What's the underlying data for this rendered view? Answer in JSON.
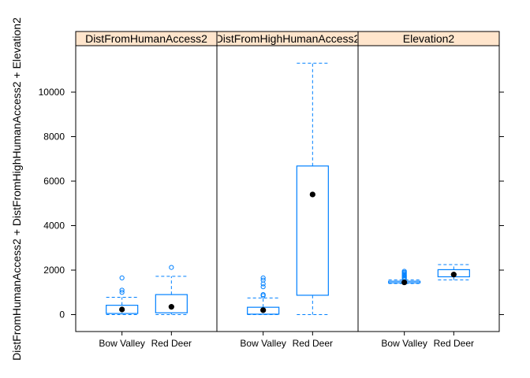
{
  "chart_data": {
    "type": "boxplot",
    "ylabel": "DistFromHumanAccess2 + DistFromHighHumanAccess2 + Elevation2",
    "ylim": [
      -700,
      11900
    ],
    "yticks": [
      0,
      2000,
      4000,
      6000,
      8000,
      10000
    ],
    "categories": [
      "Bow Valley",
      "Red Deer"
    ],
    "panels": [
      {
        "strip": "DistFromHumanAccess2",
        "boxes": [
          {
            "category": "Bow Valley",
            "whisker_low": 0,
            "q1": 50,
            "median": 230,
            "q3": 420,
            "whisker_high": 780,
            "outliers": [
              1000,
              1100,
              1650
            ]
          },
          {
            "category": "Red Deer",
            "whisker_low": 0,
            "q1": 80,
            "median": 350,
            "q3": 900,
            "whisker_high": 1720,
            "outliers": [
              2120
            ]
          }
        ]
      },
      {
        "strip": "DistFromHighHumanAccess2",
        "boxes": [
          {
            "category": "Bow Valley",
            "whisker_low": 0,
            "q1": 20,
            "median": 200,
            "q3": 330,
            "whisker_high": 750,
            "outliers": [
              850,
              900,
              1250,
              1380,
              1550,
              1650
            ]
          },
          {
            "category": "Red Deer",
            "whisker_low": 0,
            "q1": 870,
            "median": 5400,
            "q3": 6680,
            "whisker_high": 11300,
            "outliers": []
          }
        ]
      },
      {
        "strip": "Elevation2",
        "boxes": [
          {
            "category": "Bow Valley",
            "whisker_low": 1400,
            "q1": 1430,
            "median": 1450,
            "q3": 1500,
            "whisker_high": 1560,
            "outliers": [
              1600,
              1650,
              1700,
              1750,
              1800,
              1850,
              1900,
              1950
            ]
          },
          {
            "category": "Red Deer",
            "whisker_low": 1560,
            "q1": 1700,
            "median": 1800,
            "q3": 2020,
            "whisker_high": 2250,
            "outliers": []
          }
        ]
      }
    ],
    "colors": {
      "box": "#0080ff",
      "strip_bg": "#ffe5cc",
      "median_dot": "#000000",
      "axis": "#000000"
    }
  }
}
